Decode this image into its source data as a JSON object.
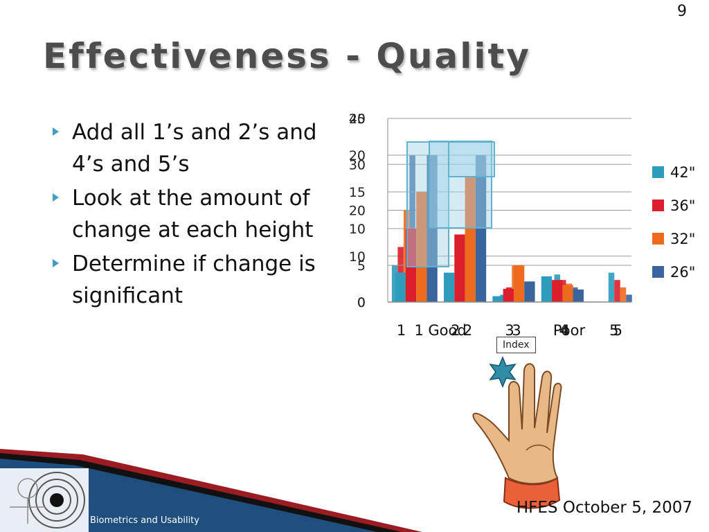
{
  "slide": {
    "number": "9",
    "title": "Effectiveness - Quality",
    "bullets": [
      "Add all 1’s and 2’s and 4’s and 5’s",
      "Look at the amount of change at each height",
      "Determine if change is significant"
    ],
    "footer_date": "HFES October 5, 2007",
    "footer_brand": "Biometrics and Usability",
    "finger_tag": "Index"
  },
  "colors": {
    "series_42": "#2e9cbd",
    "series_36": "#dc1f2c",
    "series_32": "#ed6b1f",
    "series_26": "#3a649e",
    "bullet": "#3f9fc3",
    "banner_blue": "#1d4e7e",
    "banner_red": "#9b1c22"
  },
  "icons": [
    "bullet-arrow-icon",
    "hand-illustration",
    "fingerprint-logo"
  ],
  "chart_data": [
    {
      "type": "bar",
      "categories": [
        "1",
        "",
        "2",
        "",
        "3",
        "",
        "4",
        "",
        "5"
      ],
      "x_annotations": [
        "Good",
        "Poor"
      ],
      "series": [
        {
          "name": "42\"",
          "values": [
            2,
            0,
            0,
            0,
            0.4,
            0,
            1.5,
            0,
            1.6
          ]
        },
        {
          "name": "36\"",
          "values": [
            3,
            0,
            0,
            0,
            0.8,
            0,
            1.2,
            0,
            1.2
          ]
        },
        {
          "name": "32\"",
          "values": [
            5,
            0,
            0,
            0,
            2,
            0,
            1,
            0,
            0.8
          ]
        },
        {
          "name": "26\"",
          "values": [
            8,
            0,
            0,
            0,
            1.2,
            0,
            0.8,
            0,
            0.4
          ]
        }
      ],
      "ylim": [
        0,
        10
      ],
      "yticks": [
        "0",
        "10",
        "20",
        "30",
        "40"
      ],
      "legend": "right",
      "grid": true
    },
    {
      "type": "bar",
      "categories": [
        "1",
        "2",
        "3",
        "4",
        "5"
      ],
      "series": [
        {
          "name": "42\"",
          "values": [
            4,
            4,
            0.8,
            3.5,
            0
          ]
        },
        {
          "name": "36\"",
          "values": [
            10,
            9.2,
            1.8,
            3,
            0
          ]
        },
        {
          "name": "32\"",
          "values": [
            15,
            17,
            5,
            2.3,
            0
          ]
        },
        {
          "name": "26\"",
          "values": [
            20,
            20,
            2.8,
            1.7,
            0
          ]
        }
      ],
      "ylim": [
        0,
        25
      ],
      "yticks": [
        "0",
        "5",
        "10",
        "15",
        "20",
        "25"
      ],
      "legend": "right",
      "grid": true
    }
  ]
}
